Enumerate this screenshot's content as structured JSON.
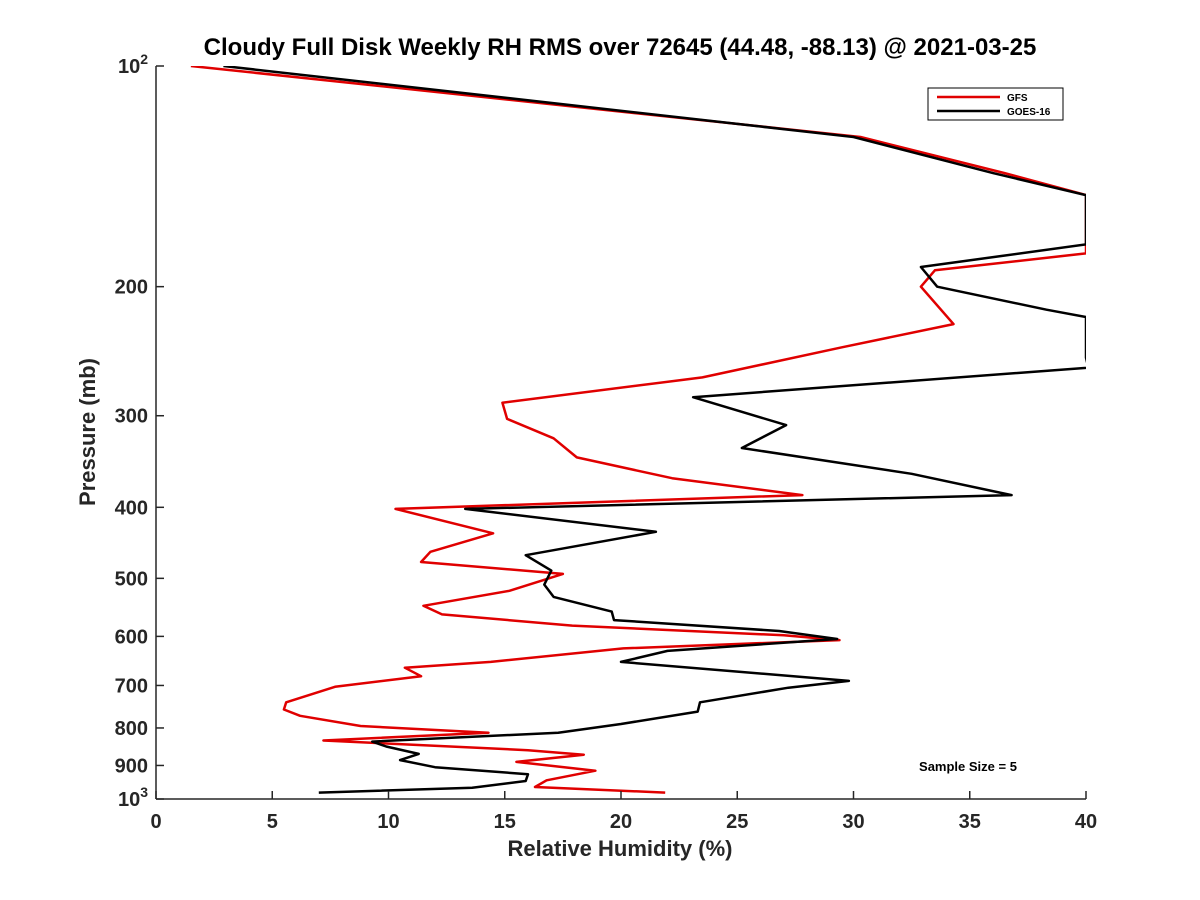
{
  "chart_data": {
    "type": "line",
    "title": "Cloudy Full Disk Weekly RH RMS over 72645 (44.48, -88.13) @ 2021-03-25",
    "xlabel": "Relative Humidity (%)",
    "ylabel": "Pressure (mb)",
    "xlim": [
      0,
      40
    ],
    "ylim": [
      100,
      1000
    ],
    "yscale": "log",
    "y_reversed": true,
    "grid": false,
    "legend_position": "top-right",
    "xticks": [
      0,
      5,
      10,
      15,
      20,
      25,
      30,
      35,
      40
    ],
    "yticks": [
      100,
      200,
      300,
      400,
      500,
      600,
      700,
      800,
      900,
      1000
    ],
    "ytick_labels": [
      {
        "base": "10",
        "exp": "2"
      },
      {
        "text": "200"
      },
      {
        "text": "300"
      },
      {
        "text": "400"
      },
      {
        "text": "500"
      },
      {
        "text": "600"
      },
      {
        "text": "700"
      },
      {
        "text": "800"
      },
      {
        "text": "900"
      },
      {
        "base": "10",
        "exp": "3"
      }
    ],
    "annotation": "Sample Size = 5",
    "series": [
      {
        "name": "GFS",
        "color": "#e00000",
        "points": [
          [
            1.5,
            100
          ],
          [
            30.3,
            125
          ],
          [
            36.5,
            140
          ],
          [
            40,
            150
          ],
          [
            40,
            180
          ],
          [
            40.1,
            180
          ],
          [
            33.5,
            190
          ],
          [
            32.9,
            200
          ],
          [
            34.3,
            225
          ],
          [
            29.5,
            242
          ],
          [
            23.5,
            266
          ],
          [
            14.9,
            288
          ],
          [
            15.1,
            303
          ],
          [
            17.1,
            322
          ],
          [
            18.1,
            342
          ],
          [
            22.2,
            365
          ],
          [
            27.8,
            385
          ],
          [
            10.3,
            402
          ],
          [
            14.5,
            434
          ],
          [
            11.8,
            460
          ],
          [
            11.4,
            475
          ],
          [
            17.5,
            493
          ],
          [
            15.2,
            520
          ],
          [
            11.5,
            545
          ],
          [
            12.3,
            560
          ],
          [
            17.9,
            580
          ],
          [
            27.0,
            598
          ],
          [
            29.4,
            607
          ],
          [
            20.1,
            623
          ],
          [
            14.4,
            650
          ],
          [
            10.7,
            662
          ],
          [
            11.4,
            680
          ],
          [
            7.7,
            703
          ],
          [
            5.6,
            738
          ],
          [
            5.5,
            755
          ],
          [
            6.2,
            770
          ],
          [
            8.8,
            795
          ],
          [
            14.3,
            812
          ],
          [
            7.2,
            832
          ],
          [
            16.0,
            858
          ],
          [
            18.4,
            870
          ],
          [
            15.5,
            890
          ],
          [
            18.9,
            915
          ],
          [
            16.8,
            943
          ],
          [
            16.3,
            963
          ],
          [
            21.9,
            980
          ]
        ]
      },
      {
        "name": "GOES-16",
        "color": "#000000",
        "points": [
          [
            2.9,
            100
          ],
          [
            30.0,
            125
          ],
          [
            36.0,
            140
          ],
          [
            40,
            150
          ],
          [
            40,
            175
          ],
          [
            40.1,
            175
          ],
          [
            32.9,
            188
          ],
          [
            33.6,
            200
          ],
          [
            38.3,
            215
          ],
          [
            40,
            220
          ],
          [
            40,
            250
          ],
          [
            40.1,
            258
          ],
          [
            23.1,
            283
          ],
          [
            27.1,
            309
          ],
          [
            25.2,
            332
          ],
          [
            32.5,
            360
          ],
          [
            36.8,
            385
          ],
          [
            13.3,
            402
          ],
          [
            21.5,
            432
          ],
          [
            15.9,
            465
          ],
          [
            17.0,
            488
          ],
          [
            16.7,
            510
          ],
          [
            17.1,
            530
          ],
          [
            19.6,
            555
          ],
          [
            19.7,
            570
          ],
          [
            26.8,
            590
          ],
          [
            29.3,
            605
          ],
          [
            22.0,
            628
          ],
          [
            20.0,
            650
          ],
          [
            29.8,
            690
          ],
          [
            27.2,
            705
          ],
          [
            23.4,
            738
          ],
          [
            23.3,
            760
          ],
          [
            20.0,
            790
          ],
          [
            17.3,
            812
          ],
          [
            9.3,
            835
          ],
          [
            9.9,
            848
          ],
          [
            11.3,
            868
          ],
          [
            10.5,
            885
          ],
          [
            12.0,
            905
          ],
          [
            16.0,
            925
          ],
          [
            15.9,
            945
          ],
          [
            13.6,
            965
          ],
          [
            7.0,
            980
          ]
        ]
      }
    ]
  }
}
